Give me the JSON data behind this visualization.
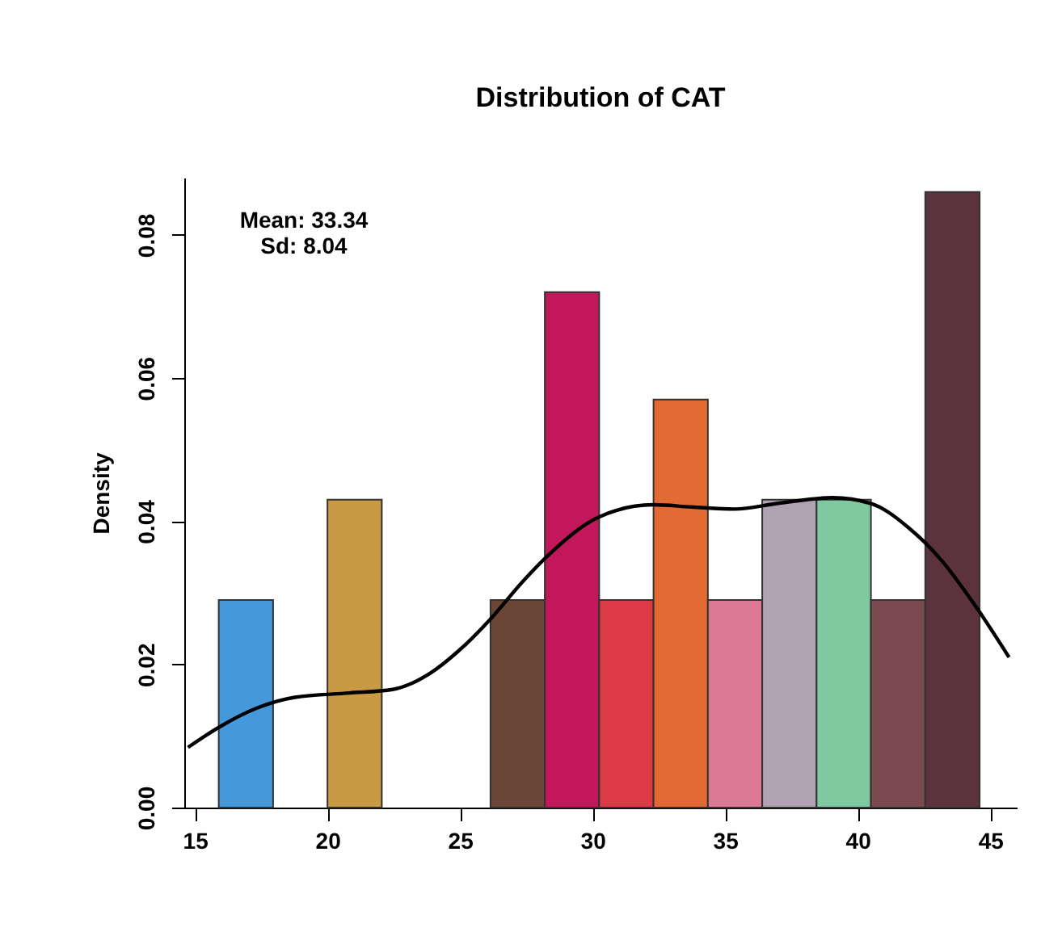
{
  "chart_data": {
    "type": "histogram",
    "title": "Distribution of CAT",
    "ylabel": "Density",
    "bins": [
      15.9,
      17.95,
      20.0,
      22.05,
      24.1,
      26.15,
      28.2,
      30.25,
      32.3,
      34.35,
      36.4,
      38.45,
      40.5,
      42.55,
      44.6
    ],
    "values": [
      0.029,
      0,
      0.043,
      0,
      0,
      0.029,
      0.072,
      0.029,
      0.057,
      0.029,
      0.043,
      0.043,
      0.029,
      0.086
    ],
    "colors": [
      "#4499dd",
      "#ffffff",
      "#c89a44",
      "#ffffff",
      "#ffffff",
      "#6b4535",
      "#c2185b",
      "#dd3a48",
      "#e36a33",
      "#dc7a96",
      "#b0a2b2",
      "#80c8a0",
      "#7b4a50",
      "#5c333c"
    ],
    "series": [
      {
        "type": "line",
        "line_style": "solid",
        "color": "#000000",
        "x": [
          14.74,
          15.9,
          17.34,
          18.77,
          20.82,
          22.46,
          23.89,
          24.92,
          26.14,
          27.37,
          28.4,
          30.24,
          32.29,
          33.72,
          35.36,
          37.0,
          39.05,
          40.49,
          41.92,
          43.15,
          44.38,
          45.71
        ],
        "values": [
          0.0084,
          0.0112,
          0.0139,
          0.0154,
          0.016,
          0.0165,
          0.0188,
          0.0218,
          0.0263,
          0.0316,
          0.0355,
          0.0406,
          0.0423,
          0.042,
          0.0417,
          0.0425,
          0.0433,
          0.0425,
          0.0391,
          0.0346,
          0.0285,
          0.021
        ]
      }
    ],
    "xlim": [
      14.6,
      46
    ],
    "xticks": [
      15,
      20,
      25,
      30,
      35,
      40,
      45
    ],
    "ylim": [
      0,
      0.088
    ],
    "yticks": [
      {
        "value": 0,
        "label": "0.00"
      },
      0.02,
      0.04,
      0.06,
      0.08
    ],
    "annotations": [
      "Mean: 33.34",
      "Sd: 8.04"
    ],
    "grid": false,
    "legend": false
  }
}
